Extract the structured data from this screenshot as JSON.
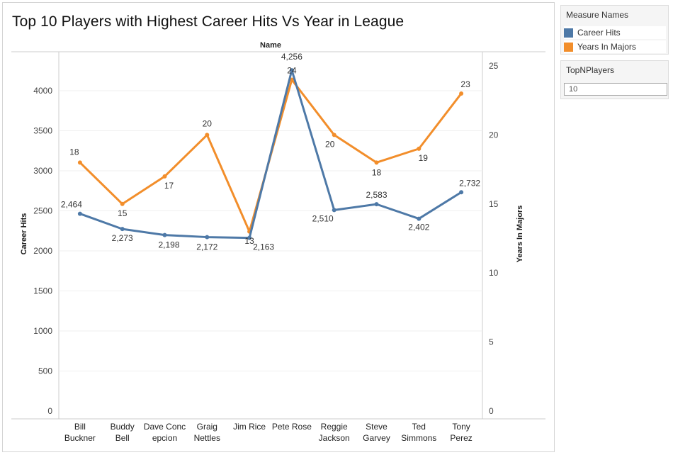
{
  "title": "Top 10 Players with Highest Career Hits Vs Year in League",
  "legend": {
    "title": "Measure Names",
    "items": [
      {
        "label": "Career Hits",
        "color": "#4e79a7"
      },
      {
        "label": "Years In Majors",
        "color": "#f28e2b"
      }
    ]
  },
  "filter": {
    "title": "TopNPlayers",
    "value": "10"
  },
  "chart_data": {
    "type": "line",
    "header": "Name",
    "categories": [
      "Bill Buckner",
      "Buddy Bell",
      "Dave Concepcion",
      "Graig Nettles",
      "Jim Rice",
      "Pete Rose",
      "Reggie Jackson",
      "Steve Garvey",
      "Ted Simmons",
      "Tony Perez"
    ],
    "category_labels": [
      [
        "Bill",
        "Buckner"
      ],
      [
        "Buddy",
        "Bell"
      ],
      [
        "Dave Conc",
        "epcion"
      ],
      [
        "Graig",
        "Nettles"
      ],
      [
        "Jim Rice"
      ],
      [
        "Pete Rose"
      ],
      [
        "Reggie",
        "Jackson"
      ],
      [
        "Steve",
        "Garvey"
      ],
      [
        "Ted",
        "Simmons"
      ],
      [
        "Tony",
        "Perez"
      ]
    ],
    "series": [
      {
        "name": "Career Hits",
        "axis": "left",
        "color": "#4e79a7",
        "values": [
          2464,
          2273,
          2198,
          2172,
          2163,
          4256,
          2510,
          2583,
          2402,
          2732
        ],
        "labels": [
          "2,464",
          "2,273",
          "2,198",
          "2,172",
          "2,163",
          "4,256",
          "2,510",
          "2,583",
          "2,402",
          "2,732"
        ]
      },
      {
        "name": "Years In Majors",
        "axis": "right",
        "color": "#f28e2b",
        "values": [
          18,
          15,
          17,
          20,
          13,
          24,
          20,
          18,
          19,
          23
        ],
        "labels": [
          "18",
          "15",
          "17",
          "20",
          "13",
          "24",
          "20",
          "18",
          "19",
          "23"
        ]
      }
    ],
    "left_axis": {
      "label": "Career Hits",
      "ylim": [
        0,
        4400
      ],
      "ticks": [
        "0",
        "500",
        "1000",
        "1500",
        "2000",
        "2500",
        "3000",
        "3500",
        "4000"
      ]
    },
    "right_axis": {
      "label": "Years In Majors",
      "ylim": [
        0,
        25.5
      ],
      "ticks": [
        "0",
        "5",
        "10",
        "15",
        "20",
        "25"
      ]
    },
    "grid": true
  }
}
